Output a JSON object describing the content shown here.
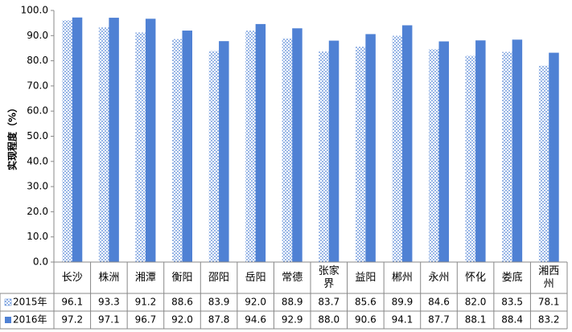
{
  "chart_data": {
    "type": "bar",
    "y_label": "实现程度（%）",
    "categories": [
      "长沙",
      "株洲",
      "湘潭",
      "衡阳",
      "邵阳",
      "岳阳",
      "常德",
      "张家界",
      "益阳",
      "郴州",
      "永州",
      "怀化",
      "娄底",
      "湘西州"
    ],
    "series": [
      {
        "name": "2015年",
        "color": "#4f81d4",
        "pattern": "dots",
        "values": [
          96.1,
          93.3,
          91.2,
          88.6,
          83.9,
          92.0,
          88.9,
          83.7,
          85.6,
          89.9,
          84.6,
          82.0,
          83.5,
          78.1
        ],
        "value_labels": [
          "96.1",
          "93.3",
          "91.2",
          "88.6",
          "83.9",
          "92.0",
          "88.9",
          "83.7",
          "85.6",
          "89.9",
          "84.6",
          "82.0",
          "83.5",
          "78.1"
        ]
      },
      {
        "name": "2016年",
        "color": "#4f81d4",
        "values": [
          97.2,
          97.1,
          96.7,
          92.0,
          87.8,
          94.6,
          92.9,
          88.0,
          90.6,
          94.1,
          87.7,
          88.1,
          88.4,
          83.2
        ],
        "value_labels": [
          "97.2",
          "97.1",
          "96.7",
          "92.0",
          "87.8",
          "94.6",
          "92.9",
          "88.0",
          "90.6",
          "94.1",
          "87.7",
          "88.1",
          "88.4",
          "83.2"
        ]
      }
    ],
    "ylim": [
      0,
      100
    ],
    "yticks": [
      {
        "value": 0,
        "label": "0.0"
      },
      {
        "value": 10,
        "label": "10.0"
      },
      {
        "value": 20,
        "label": "20.0"
      },
      {
        "value": 30,
        "label": "30.0"
      },
      {
        "value": 40,
        "label": "40.0"
      },
      {
        "value": 50,
        "label": "50.0"
      },
      {
        "value": 60,
        "label": "60.0"
      },
      {
        "value": 70,
        "label": "70.0"
      },
      {
        "value": 80,
        "label": "80.0"
      },
      {
        "value": 90,
        "label": "90.0"
      },
      {
        "value": 100,
        "label": "100.0"
      }
    ],
    "grid": false
  }
}
